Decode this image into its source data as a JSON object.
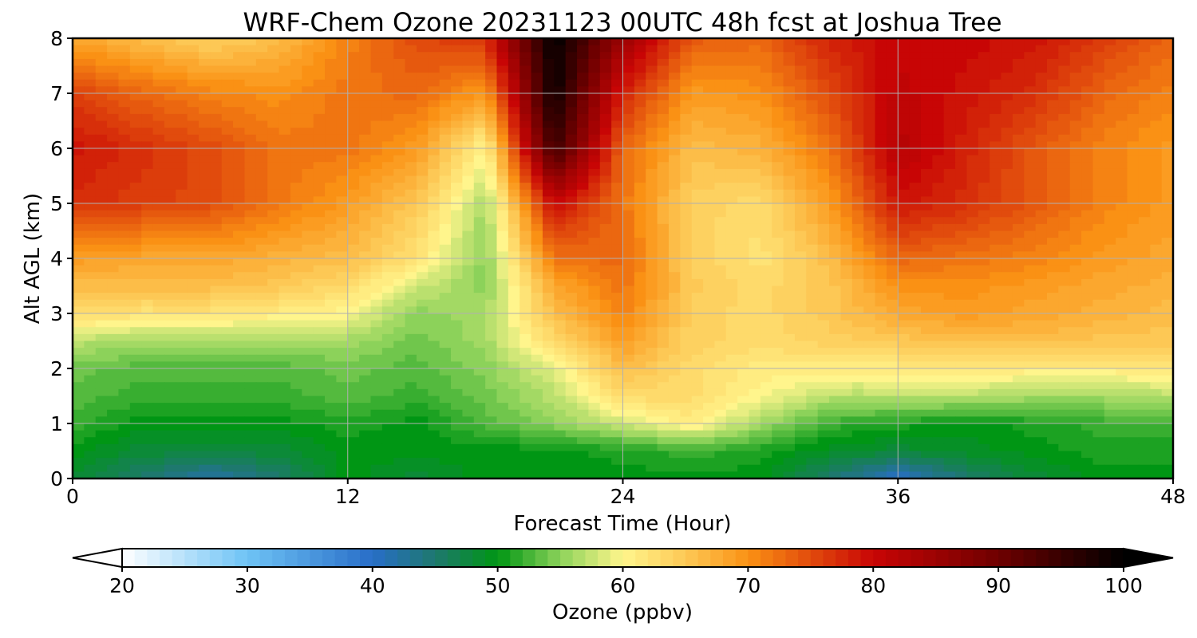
{
  "chart_data": {
    "type": "heatmap",
    "title": "WRF-Chem Ozone  20231123 00UTC 48h fcst at Joshua Tree",
    "xlabel": "Forecast Time (Hour)",
    "ylabel": "Alt AGL (km)",
    "xlim": [
      0,
      48
    ],
    "ylim": [
      0,
      8
    ],
    "x_ticks": [
      "0",
      "12",
      "24",
      "36",
      "48"
    ],
    "y_ticks": [
      "0",
      "1",
      "2",
      "3",
      "4",
      "5",
      "6",
      "7",
      "8"
    ],
    "grid": true,
    "z_label": "Ozone  (ppbv)",
    "z_range": [
      20,
      100
    ],
    "colorbar_ticks": [
      "20",
      "30",
      "40",
      "50",
      "60",
      "70",
      "80",
      "90",
      "100"
    ],
    "colorbar_extend": "both",
    "x": [
      0,
      3,
      6,
      9,
      12,
      15,
      18,
      21,
      24,
      27,
      30,
      33,
      36,
      39,
      42,
      45,
      48
    ],
    "y": [
      0,
      0.5,
      1,
      1.5,
      2,
      2.5,
      3,
      3.5,
      4,
      5,
      6,
      7,
      8
    ],
    "z": [
      [
        48,
        45,
        42,
        45,
        50,
        48,
        50,
        50,
        50,
        50,
        50,
        45,
        40,
        45,
        48,
        50,
        50
      ],
      [
        50,
        48,
        48,
        48,
        50,
        50,
        50,
        50,
        51,
        52,
        51,
        49,
        48,
        49,
        50,
        51,
        51
      ],
      [
        52,
        50,
        50,
        50,
        51,
        50,
        53,
        55,
        58,
        61,
        56,
        52,
        51,
        50,
        51,
        52,
        52
      ],
      [
        53,
        52,
        52,
        52,
        53,
        52,
        54,
        57,
        63,
        63,
        60,
        57,
        57,
        57,
        56,
        56,
        57
      ],
      [
        54,
        53,
        53,
        53,
        54,
        53,
        55,
        59,
        66,
        63,
        61,
        61,
        61,
        62,
        61,
        61,
        62
      ],
      [
        57,
        56,
        56,
        56,
        56,
        54,
        56,
        63,
        69,
        64,
        63,
        64,
        65,
        66,
        66,
        65,
        65
      ],
      [
        63,
        62,
        62,
        61,
        60,
        55,
        56,
        66,
        71,
        64,
        63,
        65,
        68,
        69,
        68,
        67,
        66
      ],
      [
        66,
        66,
        66,
        65,
        63,
        58,
        55,
        68,
        72,
        65,
        63,
        65,
        70,
        70,
        69,
        68,
        67
      ],
      [
        69,
        68,
        68,
        67,
        66,
        62,
        55,
        72,
        73,
        64,
        62,
        66,
        73,
        72,
        71,
        69,
        68
      ],
      [
        77,
        76,
        75,
        72,
        69,
        65,
        56,
        80,
        72,
        64,
        63,
        69,
        79,
        77,
        74,
        71,
        69
      ],
      [
        79,
        77,
        75,
        72,
        72,
        69,
        60,
        95,
        73,
        66,
        67,
        72,
        82,
        78,
        74,
        71,
        69
      ],
      [
        76,
        73,
        71,
        70,
        72,
        73,
        69,
        99,
        78,
        69,
        70,
        75,
        81,
        79,
        77,
        73,
        71
      ],
      [
        68,
        66,
        64,
        66,
        71,
        75,
        77,
        100,
        85,
        74,
        73,
        78,
        80,
        80,
        79,
        76,
        73
      ]
    ]
  }
}
